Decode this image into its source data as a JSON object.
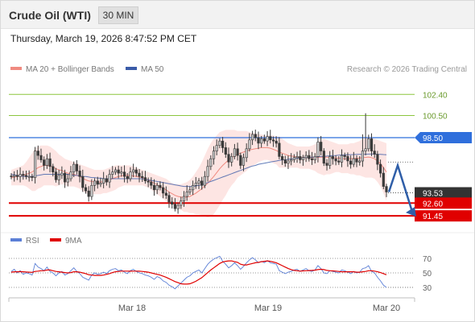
{
  "header": {
    "title": "Crude Oil (WTI)",
    "timeframe": "30 MIN"
  },
  "timestamp": "Thursday, March 19, 2026 8:47:52 PM CET",
  "credit": "Research © 2026 Trading Central",
  "legend": {
    "ma20_label": "MA 20 + Bollinger Bands",
    "ma50_label": "MA 50",
    "rsi_label": "RSI",
    "rsi_ma_label": "9MA"
  },
  "colors": {
    "ma20": "#f08a80",
    "ma50": "#3a5ba8",
    "band_fill": "#fde0de",
    "resistance_green": "#8cc63f",
    "pivot_blue": "#2f6fdc",
    "support_red": "#e00000",
    "price_box": "#333333",
    "rsi": "#5b7fd6",
    "rsi_ma": "#e00000",
    "arrow": "#2f5ea8"
  },
  "chart_data": {
    "type": "candlestick",
    "instrument": "Crude Oil (WTI)",
    "interval": "30 MIN",
    "ylim": [
      90.3,
      103.8
    ],
    "x_ticks": [
      "Mar 18",
      "Mar 19",
      "Mar 20"
    ],
    "current_price": 93.53,
    "levels": [
      {
        "type": "resistance",
        "value": 102.4,
        "label": "102.40"
      },
      {
        "type": "resistance",
        "value": 100.5,
        "label": "100.50"
      },
      {
        "type": "pivot",
        "value": 98.5,
        "label": "98.50"
      },
      {
        "type": "current",
        "value": 93.53,
        "label": "93.53"
      },
      {
        "type": "support",
        "value": 92.6,
        "label": "92.60"
      },
      {
        "type": "support",
        "value": 91.45,
        "label": "91.45"
      }
    ],
    "forecast": {
      "direction": "down",
      "path": [
        93.6,
        96.0,
        91.6
      ]
    },
    "close": [
      95.0,
      95.1,
      95.0,
      95.2,
      95.1,
      95.0,
      95.0,
      94.9,
      97.3,
      96.9,
      96.5,
      96.0,
      96.6,
      95.9,
      95.4,
      94.7,
      95.1,
      95.3,
      94.5,
      94.8,
      95.4,
      96.1,
      95.5,
      95.0,
      94.0,
      93.7,
      93.2,
      94.2,
      94.6,
      94.3,
      94.4,
      94.8,
      94.5,
      95.2,
      95.4,
      95.6,
      95.3,
      95.4,
      95.0,
      94.8,
      95.4,
      95.6,
      95.3,
      95.0,
      94.9,
      94.6,
      94.5,
      94.2,
      93.8,
      94.2,
      94.0,
      93.5,
      93.3,
      92.7,
      92.5,
      92.1,
      92.4,
      92.8,
      93.2,
      93.6,
      93.8,
      94.2,
      94.4,
      94.6,
      94.2,
      95.0,
      95.9,
      96.6,
      97.3,
      97.8,
      98.2,
      97.6,
      97.0,
      96.3,
      96.8,
      97.5,
      96.9,
      96.0,
      96.7,
      97.5,
      98.3,
      98.8,
      98.5,
      98.0,
      98.4,
      98.2,
      98.6,
      98.3,
      98.2,
      98.0,
      96.8,
      96.5,
      96.2,
      96.4,
      96.5,
      96.7,
      96.8,
      96.5,
      96.7,
      96.9,
      96.6,
      96.5,
      96.8,
      98.1,
      97.3,
      96.2,
      96.0,
      96.8,
      96.6,
      96.4,
      96.3,
      96.9,
      96.8,
      96.4,
      96.1,
      96.6,
      96.3,
      96.4,
      97.3,
      97.5,
      98.4,
      97.3,
      97.0,
      96.1,
      95.3,
      94.1,
      93.6
    ],
    "ohlc": {
      "note": "Each candle: open = previous close, with high/low wicks; last two candles show long upper wick to ~100.7 and drop into 93.5 area."
    },
    "ma20": [
      94.9,
      94.95,
      95.0,
      95.05,
      95.1,
      95.2,
      95.3,
      95.4,
      95.6,
      95.8,
      95.9,
      96.0,
      96.0,
      95.95,
      95.85,
      95.7,
      95.6,
      95.55,
      95.4,
      95.3,
      95.25,
      95.2,
      95.1,
      95.0,
      94.85,
      94.7,
      94.6,
      94.55,
      94.5,
      94.5,
      94.5,
      94.55,
      94.6,
      94.7,
      94.8,
      94.9,
      95.0,
      95.05,
      95.1,
      95.1,
      95.1,
      95.05,
      95.0,
      94.95,
      94.9,
      94.8,
      94.7,
      94.55,
      94.4,
      94.25,
      94.1,
      93.95,
      93.8,
      93.6,
      93.45,
      93.3,
      93.2,
      93.15,
      93.1,
      93.15,
      93.2,
      93.35,
      93.5,
      93.7,
      93.9,
      94.15,
      94.4,
      94.7,
      95.0,
      95.35,
      95.7,
      96.0,
      96.25,
      96.5,
      96.7,
      96.85,
      97.0,
      97.1,
      97.2,
      97.3,
      97.4,
      97.45,
      97.5,
      97.55,
      97.6,
      97.6,
      97.6,
      97.55,
      97.45,
      97.35,
      97.2,
      97.1,
      97.0,
      96.9,
      96.85,
      96.8,
      96.75,
      96.7,
      96.7,
      96.7,
      96.7,
      96.7,
      96.7,
      96.72,
      96.74,
      96.75,
      96.74,
      96.72,
      96.7,
      96.68,
      96.65,
      96.62,
      96.6,
      96.6,
      96.6,
      96.62,
      96.64,
      96.66,
      96.7,
      96.72,
      96.75,
      96.7,
      96.6,
      96.4,
      96.15,
      95.8,
      95.4
    ],
    "band_upper": [
      95.6,
      95.7,
      95.8,
      95.9,
      96.0,
      96.3,
      96.7,
      97.1,
      97.5,
      97.7,
      97.8,
      97.8,
      97.8,
      97.7,
      97.5,
      97.3,
      97.0,
      96.8,
      96.6,
      96.5,
      96.4,
      96.3,
      96.2,
      96.1,
      96.0,
      95.9,
      95.8,
      95.7,
      95.6,
      95.6,
      95.6,
      95.6,
      95.7,
      95.8,
      95.9,
      96.0,
      96.0,
      96.0,
      96.0,
      96.0,
      96.0,
      95.9,
      95.8,
      95.7,
      95.6,
      95.5,
      95.4,
      95.3,
      95.2,
      95.1,
      95.0,
      94.9,
      94.8,
      94.6,
      94.4,
      94.3,
      94.3,
      94.3,
      94.4,
      94.5,
      94.7,
      95.0,
      95.4,
      95.8,
      96.3,
      96.9,
      97.5,
      98.0,
      98.4,
      98.7,
      99.0,
      99.1,
      99.2,
      99.2,
      99.2,
      99.2,
      99.1,
      99.1,
      99.1,
      99.1,
      99.0,
      98.9,
      98.9,
      98.8,
      98.8,
      98.7,
      98.7,
      98.7,
      98.7,
      98.6,
      98.6,
      98.4,
      98.2,
      98.0,
      97.9,
      97.8,
      97.7,
      97.7,
      97.7,
      97.7,
      97.7,
      97.8,
      97.9,
      98.1,
      98.3,
      98.4,
      98.3,
      98.2,
      98.1,
      98.0,
      97.9,
      97.9,
      97.9,
      97.9,
      98.0,
      98.0,
      98.1,
      98.2,
      98.4,
      98.5,
      98.6,
      98.5,
      98.4,
      98.3,
      98.2,
      98.1,
      98.0
    ],
    "band_lower": [
      94.2,
      94.2,
      94.2,
      94.2,
      94.2,
      94.1,
      93.9,
      93.7,
      93.7,
      93.9,
      94.0,
      94.2,
      94.2,
      94.2,
      94.2,
      94.1,
      94.2,
      94.3,
      94.2,
      94.1,
      94.1,
      94.1,
      94.0,
      93.9,
      93.7,
      93.5,
      93.4,
      93.4,
      93.4,
      93.4,
      93.4,
      93.5,
      93.5,
      93.6,
      93.7,
      93.8,
      94.0,
      94.1,
      94.2,
      94.2,
      94.2,
      94.2,
      94.2,
      94.2,
      94.2,
      94.1,
      94.0,
      93.8,
      93.6,
      93.4,
      93.2,
      93.0,
      92.8,
      92.6,
      92.5,
      92.3,
      92.1,
      92.0,
      91.8,
      91.8,
      91.7,
      91.7,
      91.6,
      91.6,
      91.5,
      91.4,
      91.3,
      91.4,
      91.6,
      92.0,
      92.4,
      92.9,
      93.3,
      93.8,
      94.2,
      94.5,
      94.9,
      95.1,
      95.3,
      95.5,
      95.8,
      96.0,
      96.1,
      96.3,
      96.4,
      96.5,
      96.5,
      96.4,
      96.2,
      96.1,
      95.8,
      95.8,
      95.8,
      95.8,
      95.8,
      95.8,
      95.8,
      95.7,
      95.7,
      95.7,
      95.7,
      95.6,
      95.5,
      95.3,
      95.2,
      95.1,
      95.2,
      95.2,
      95.3,
      95.4,
      95.4,
      95.3,
      95.3,
      95.3,
      95.2,
      95.2,
      95.1,
      95.1,
      95.0,
      94.9,
      94.9,
      94.9,
      94.8,
      94.5,
      94.1,
      93.5,
      92.8
    ],
    "ma50": [
      95.2,
      95.15,
      95.1,
      95.05,
      95.0,
      95.0,
      95.0,
      95.0,
      95.05,
      95.1,
      95.15,
      95.2,
      95.2,
      95.2,
      95.2,
      95.2,
      95.2,
      95.2,
      95.2,
      95.2,
      95.15,
      95.1,
      95.1,
      95.05,
      95.0,
      95.0,
      94.95,
      94.9,
      94.9,
      94.85,
      94.85,
      94.8,
      94.8,
      94.8,
      94.8,
      94.8,
      94.8,
      94.8,
      94.8,
      94.8,
      94.8,
      94.8,
      94.8,
      94.8,
      94.8,
      94.75,
      94.7,
      94.65,
      94.6,
      94.55,
      94.5,
      94.45,
      94.4,
      94.35,
      94.3,
      94.25,
      94.2,
      94.15,
      94.1,
      94.1,
      94.1,
      94.1,
      94.15,
      94.2,
      94.25,
      94.35,
      94.45,
      94.55,
      94.65,
      94.75,
      94.85,
      94.95,
      95.05,
      95.15,
      95.25,
      95.35,
      95.45,
      95.55,
      95.65,
      95.75,
      95.85,
      95.95,
      96.0,
      96.1,
      96.15,
      96.2,
      96.25,
      96.3,
      96.35,
      96.4,
      96.45,
      96.5,
      96.5,
      96.55,
      96.6,
      96.6,
      96.65,
      96.65,
      96.7,
      96.7,
      96.72,
      96.74,
      96.76,
      96.78,
      96.8,
      96.82,
      96.84,
      96.86,
      96.88,
      96.9,
      96.92,
      96.94,
      96.95,
      96.96,
      96.97,
      96.98,
      96.99,
      97.0,
      97.0,
      97.01,
      97.02,
      97.02,
      97.02,
      97.01,
      97.0,
      96.98,
      96.96
    ],
    "rsi": {
      "ylim": [
        20,
        80
      ],
      "ticks": [
        70,
        50,
        30
      ],
      "values": [
        52,
        55,
        50,
        53,
        48,
        50,
        49,
        47,
        63,
        58,
        56,
        53,
        58,
        52,
        50,
        46,
        50,
        52,
        47,
        49,
        53,
        57,
        52,
        49,
        44,
        42,
        40,
        47,
        50,
        48,
        49,
        51,
        49,
        53,
        55,
        56,
        53,
        54,
        51,
        49,
        53,
        55,
        52,
        50,
        49,
        47,
        46,
        44,
        41,
        45,
        43,
        39,
        37,
        33,
        31,
        28,
        32,
        36,
        40,
        44,
        46,
        50,
        52,
        54,
        50,
        56,
        62,
        66,
        69,
        71,
        73,
        66,
        62,
        57,
        60,
        64,
        60,
        55,
        59,
        64,
        68,
        71,
        68,
        64,
        66,
        64,
        67,
        64,
        63,
        62,
        53,
        51,
        49,
        51,
        52,
        54,
        55,
        52,
        54,
        56,
        53,
        52,
        54,
        60,
        56,
        50,
        49,
        53,
        52,
        51,
        50,
        54,
        53,
        51,
        49,
        52,
        50,
        51,
        56,
        57,
        60,
        52,
        50,
        44,
        39,
        33,
        30
      ],
      "ma9": [
        51,
        51.5,
        51.5,
        51.8,
        51.5,
        51.2,
        51.0,
        50.8,
        52,
        52.5,
        53,
        53,
        54,
        54,
        53,
        52,
        51.5,
        51,
        50.5,
        50,
        50.5,
        51.5,
        51.5,
        51,
        50,
        49,
        47.5,
        47,
        46.5,
        46.5,
        46.5,
        47,
        48,
        49,
        50.5,
        51.5,
        52,
        52.5,
        52.5,
        52.5,
        52.3,
        52.5,
        52.5,
        52.3,
        52,
        51.5,
        51,
        50,
        49,
        48,
        47,
        45.5,
        44,
        42,
        40,
        38,
        36.5,
        35,
        34.5,
        34.5,
        35,
        36.5,
        38.5,
        41,
        43.5,
        47,
        50.5,
        54,
        57,
        60,
        63,
        65,
        66,
        66.5,
        66.5,
        65.5,
        64.5,
        62,
        61,
        61,
        62,
        63,
        64,
        64.5,
        65.5,
        66,
        66.5,
        66,
        65,
        64,
        62,
        60,
        58,
        56,
        54.5,
        53.5,
        53,
        52.5,
        52.8,
        53,
        53.2,
        53.5,
        53.8,
        54.5,
        55,
        54.5,
        53.5,
        53,
        52.8,
        52.5,
        52,
        51.5,
        51.5,
        51.5,
        51.5,
        51.5,
        51,
        51,
        51.5,
        52,
        53,
        53,
        52.5,
        51.5,
        50.5,
        49,
        47.5
      ],
      "legend": [
        "RSI",
        "9MA"
      ]
    }
  }
}
